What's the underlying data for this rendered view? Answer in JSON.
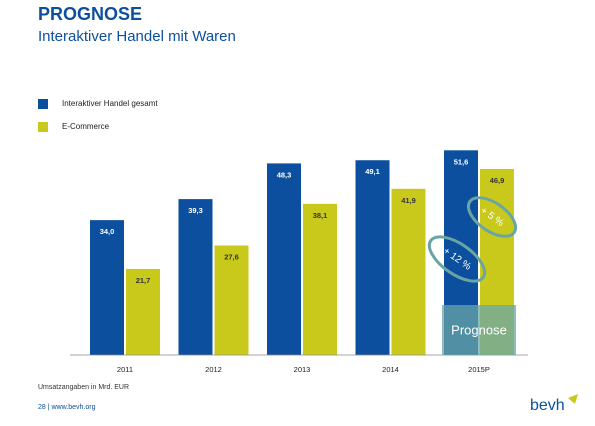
{
  "chart_data": {
    "type": "bar",
    "title": "PROGNOSE",
    "subtitle": "Interaktiver Handel mit Waren",
    "categories": [
      "2011",
      "2012",
      "2013",
      "2014",
      "2015P"
    ],
    "series": [
      {
        "name": "Interaktiver Handel gesamt",
        "color": "#0b4f9e",
        "values": [
          34.0,
          39.3,
          48.3,
          49.1,
          51.6
        ],
        "value_labels": [
          "34,0",
          "39,3",
          "48,3",
          "49,1",
          "51,6"
        ]
      },
      {
        "name": "E-Commerce",
        "color": "#c9c91c",
        "values": [
          21.7,
          27.6,
          38.1,
          41.9,
          46.9
        ],
        "value_labels": [
          "21,7",
          "27,6",
          "38,1",
          "41,9",
          "46,9"
        ]
      }
    ],
    "ylim": [
      0,
      60
    ],
    "annotations": [
      "+ 5 %",
      "+ 12 %",
      "Prognose"
    ],
    "footnote": "Umsatzangaben in Mrd. EUR",
    "footer": "28 | www.bevh.org",
    "logo": "bevh"
  }
}
